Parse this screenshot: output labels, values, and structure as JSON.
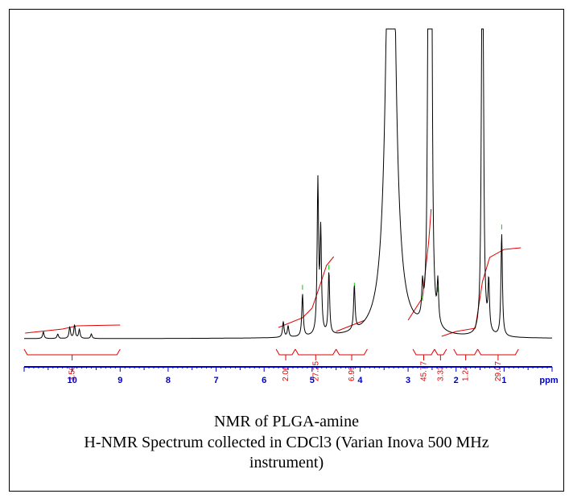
{
  "caption": {
    "title": "NMR of PLGA-amine",
    "line1": "H-NMR Spectrum collected in CDCl3 (Varian Inova 500 MHz",
    "line2": "instrument)"
  },
  "colors": {
    "spectrum": "#000000",
    "integral": "#e00000",
    "peak_marker": "#00cc00",
    "axis": "#0000cc"
  },
  "chart_data": {
    "type": "line",
    "title": "",
    "xlabel": "ppm",
    "ylabel": "",
    "xlim": [
      11.0,
      0.0
    ],
    "x_reversed": true,
    "ticks": [
      "10",
      "9",
      "8",
      "7",
      "6",
      "5",
      "4",
      "3",
      "2",
      "1"
    ],
    "tick_values": [
      10,
      9,
      8,
      7,
      6,
      5,
      4,
      3,
      2,
      1
    ],
    "peaks": [
      {
        "ppm": 10.6,
        "height": 0.03
      },
      {
        "ppm": 10.3,
        "height": 0.02
      },
      {
        "ppm": 10.05,
        "height": 0.05
      },
      {
        "ppm": 9.95,
        "height": 0.06
      },
      {
        "ppm": 9.85,
        "height": 0.04
      },
      {
        "ppm": 9.6,
        "height": 0.02
      },
      {
        "ppm": 5.6,
        "height": 0.07
      },
      {
        "ppm": 5.5,
        "height": 0.05
      },
      {
        "ppm": 5.2,
        "height": 0.19
      },
      {
        "ppm": 4.88,
        "height": 0.68
      },
      {
        "ppm": 4.82,
        "height": 0.45
      },
      {
        "ppm": 4.65,
        "height": 0.28
      },
      {
        "ppm": 4.12,
        "height": 0.2
      },
      {
        "ppm": 3.36,
        "height": 1.0
      },
      {
        "ppm": 2.7,
        "height": 0.14
      },
      {
        "ppm": 2.57,
        "height": 1.0
      },
      {
        "ppm": 2.52,
        "height": 1.0
      },
      {
        "ppm": 2.38,
        "height": 0.18
      },
      {
        "ppm": 1.45,
        "height": 1.0
      },
      {
        "ppm": 1.32,
        "height": 0.22
      },
      {
        "ppm": 1.05,
        "height": 0.46
      }
    ],
    "integrals": [
      {
        "label": "3.50",
        "from_ppm": 11.0,
        "to_ppm": 9.0
      },
      {
        "label": "2.06",
        "from_ppm": 5.75,
        "to_ppm": 5.35
      },
      {
        "label": "27.25",
        "from_ppm": 5.35,
        "to_ppm": 4.5
      },
      {
        "label": "6.99",
        "from_ppm": 4.5,
        "to_ppm": 3.85
      },
      {
        "label": "45.77",
        "from_ppm": 2.9,
        "to_ppm": 2.45
      },
      {
        "label": "3.33",
        "from_ppm": 2.45,
        "to_ppm": 2.2
      },
      {
        "label": "1.24",
        "from_ppm": 2.05,
        "to_ppm": 1.55
      },
      {
        "label": "29.07",
        "from_ppm": 1.55,
        "to_ppm": 0.7
      }
    ],
    "grid": false
  }
}
